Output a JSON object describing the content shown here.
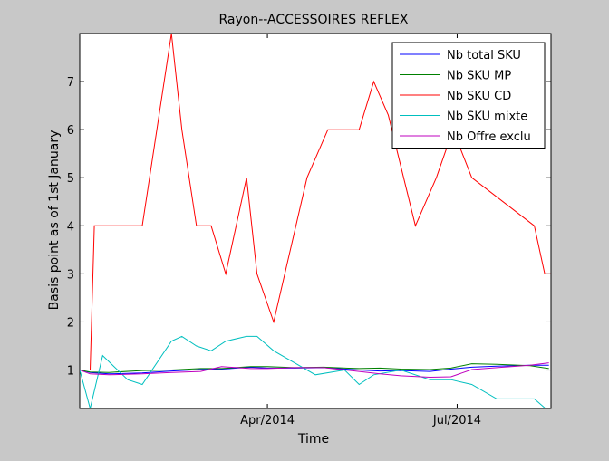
{
  "chart_data": {
    "type": "line",
    "title": "Rayon--ACCESSOIRES REFLEX",
    "xlabel": "Time",
    "ylabel": "Basis point as of 1st January",
    "x_domain": [
      "2014-01-01",
      "2014-08-15"
    ],
    "ylim": [
      0.2,
      8
    ],
    "y_ticks": [
      1,
      2,
      3,
      4,
      5,
      6,
      7
    ],
    "x_ticks": [
      {
        "date": "2014-04-01",
        "label": "Apr/2014"
      },
      {
        "date": "2014-07-01",
        "label": "Jul/2014"
      }
    ],
    "grid": false,
    "legend_position": "top-right",
    "series": [
      {
        "name": "Nb total SKU",
        "color": "#0000ff",
        "points": [
          [
            "2014-01-01",
            1.0
          ],
          [
            "2014-01-06",
            0.95
          ],
          [
            "2014-01-15",
            0.92
          ],
          [
            "2014-01-31",
            0.94
          ],
          [
            "2014-02-14",
            0.98
          ],
          [
            "2014-02-28",
            1.01
          ],
          [
            "2014-03-10",
            1.02
          ],
          [
            "2014-03-24",
            1.06
          ],
          [
            "2014-04-01",
            1.04
          ],
          [
            "2014-04-14",
            1.04
          ],
          [
            "2014-04-28",
            1.05
          ],
          [
            "2014-05-15",
            1.0
          ],
          [
            "2014-05-25",
            0.98
          ],
          [
            "2014-06-04",
            0.99
          ],
          [
            "2014-06-18",
            0.97
          ],
          [
            "2014-06-28",
            1.02
          ],
          [
            "2014-07-08",
            1.06
          ],
          [
            "2014-07-20",
            1.08
          ],
          [
            "2014-08-05",
            1.1
          ],
          [
            "2014-08-14",
            1.1
          ]
        ]
      },
      {
        "name": "Nb SKU MP",
        "color": "#008000",
        "points": [
          [
            "2014-01-01",
            1.0
          ],
          [
            "2014-01-06",
            0.96
          ],
          [
            "2014-01-15",
            0.95
          ],
          [
            "2014-01-31",
            0.99
          ],
          [
            "2014-02-14",
            1.0
          ],
          [
            "2014-02-28",
            1.03
          ],
          [
            "2014-03-10",
            1.03
          ],
          [
            "2014-03-24",
            1.07
          ],
          [
            "2014-04-01",
            1.07
          ],
          [
            "2014-04-14",
            1.05
          ],
          [
            "2014-04-28",
            1.06
          ],
          [
            "2014-05-15",
            1.03
          ],
          [
            "2014-05-25",
            1.04
          ],
          [
            "2014-06-04",
            1.02
          ],
          [
            "2014-06-18",
            1.01
          ],
          [
            "2014-06-28",
            1.04
          ],
          [
            "2014-07-08",
            1.13
          ],
          [
            "2014-07-20",
            1.12
          ],
          [
            "2014-08-05",
            1.09
          ],
          [
            "2014-08-14",
            1.03
          ]
        ]
      },
      {
        "name": "Nb SKU CD",
        "color": "#ff0000",
        "points": [
          [
            "2014-01-01",
            1.0
          ],
          [
            "2014-01-06",
            1.0
          ],
          [
            "2014-01-08",
            4.0
          ],
          [
            "2014-01-15",
            4.0
          ],
          [
            "2014-01-31",
            4.0
          ],
          [
            "2014-02-14",
            8.0
          ],
          [
            "2014-02-19",
            6.0
          ],
          [
            "2014-02-26",
            4.0
          ],
          [
            "2014-03-05",
            4.0
          ],
          [
            "2014-03-12",
            3.0
          ],
          [
            "2014-03-22",
            5.0
          ],
          [
            "2014-03-27",
            3.0
          ],
          [
            "2014-04-04",
            2.0
          ],
          [
            "2014-04-20",
            5.0
          ],
          [
            "2014-04-30",
            6.0
          ],
          [
            "2014-05-15",
            6.0
          ],
          [
            "2014-05-22",
            7.0
          ],
          [
            "2014-05-29",
            6.3
          ],
          [
            "2014-06-11",
            4.0
          ],
          [
            "2014-06-21",
            5.0
          ],
          [
            "2014-06-29",
            6.0
          ],
          [
            "2014-07-08",
            5.0
          ],
          [
            "2014-08-07",
            4.0
          ],
          [
            "2014-08-12",
            3.0
          ],
          [
            "2014-08-15",
            3.0
          ]
        ]
      },
      {
        "name": "Nb SKU mixte",
        "color": "#00bfbf",
        "points": [
          [
            "2014-01-01",
            1.0
          ],
          [
            "2014-01-06",
            0.2
          ],
          [
            "2014-01-12",
            1.3
          ],
          [
            "2014-01-24",
            0.8
          ],
          [
            "2014-01-31",
            0.7
          ],
          [
            "2014-02-14",
            1.6
          ],
          [
            "2014-02-19",
            1.7
          ],
          [
            "2014-02-26",
            1.5
          ],
          [
            "2014-03-05",
            1.4
          ],
          [
            "2014-03-12",
            1.6
          ],
          [
            "2014-03-22",
            1.7
          ],
          [
            "2014-03-27",
            1.7
          ],
          [
            "2014-04-04",
            1.4
          ],
          [
            "2014-04-24",
            0.9
          ],
          [
            "2014-05-08",
            1.0
          ],
          [
            "2014-05-15",
            0.7
          ],
          [
            "2014-05-22",
            0.9
          ],
          [
            "2014-06-04",
            1.0
          ],
          [
            "2014-06-18",
            0.8
          ],
          [
            "2014-06-28",
            0.8
          ],
          [
            "2014-07-08",
            0.7
          ],
          [
            "2014-07-20",
            0.4
          ],
          [
            "2014-08-07",
            0.4
          ],
          [
            "2014-08-15",
            0.1
          ]
        ]
      },
      {
        "name": "Nb Offre exclu",
        "color": "#bf00bf",
        "points": [
          [
            "2014-01-01",
            1.0
          ],
          [
            "2014-01-06",
            0.92
          ],
          [
            "2014-01-15",
            0.9
          ],
          [
            "2014-01-31",
            0.92
          ],
          [
            "2014-02-14",
            0.95
          ],
          [
            "2014-02-28",
            0.97
          ],
          [
            "2014-03-10",
            1.07
          ],
          [
            "2014-03-24",
            1.03
          ],
          [
            "2014-04-01",
            1.03
          ],
          [
            "2014-04-14",
            1.05
          ],
          [
            "2014-04-28",
            1.05
          ],
          [
            "2014-05-15",
            0.97
          ],
          [
            "2014-05-25",
            0.92
          ],
          [
            "2014-06-04",
            0.88
          ],
          [
            "2014-06-18",
            0.85
          ],
          [
            "2014-06-28",
            0.86
          ],
          [
            "2014-07-08",
            1.01
          ],
          [
            "2014-07-20",
            1.05
          ],
          [
            "2014-08-05",
            1.1
          ],
          [
            "2014-08-14",
            1.15
          ]
        ]
      }
    ]
  }
}
